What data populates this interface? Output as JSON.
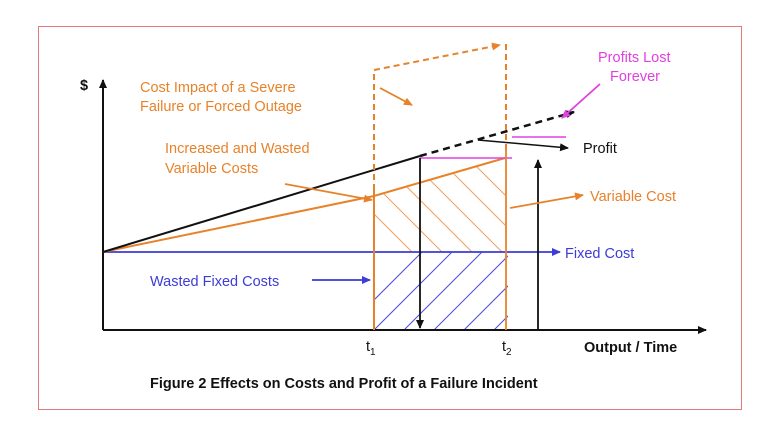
{
  "diagram": {
    "y_axis_label": "$",
    "x_axis_label": "Output / Time",
    "t1_label": "t",
    "t1_sub": "1",
    "t2_label": "t",
    "t2_sub": "2",
    "caption": "Figure 2 Effects on Costs and Profit of a Failure Incident",
    "annotations": {
      "severe_failure_line1": "Cost Impact of a Severe",
      "severe_failure_line2": "Failure or Forced Outage",
      "profits_lost_line1": "Profits Lost",
      "profits_lost_line2": "Forever",
      "profit": "Profit",
      "increased_wasted_line1": "Increased and Wasted",
      "increased_wasted_line2": "Variable Costs",
      "variable_cost": "Variable Cost",
      "fixed_cost": "Fixed Cost",
      "wasted_fixed_costs": "Wasted Fixed Costs"
    },
    "colors": {
      "orange": "#e8822a",
      "blue": "#3c3cd6",
      "magenta": "#e040e0",
      "black": "#111111",
      "border": "#e07b7b"
    }
  }
}
